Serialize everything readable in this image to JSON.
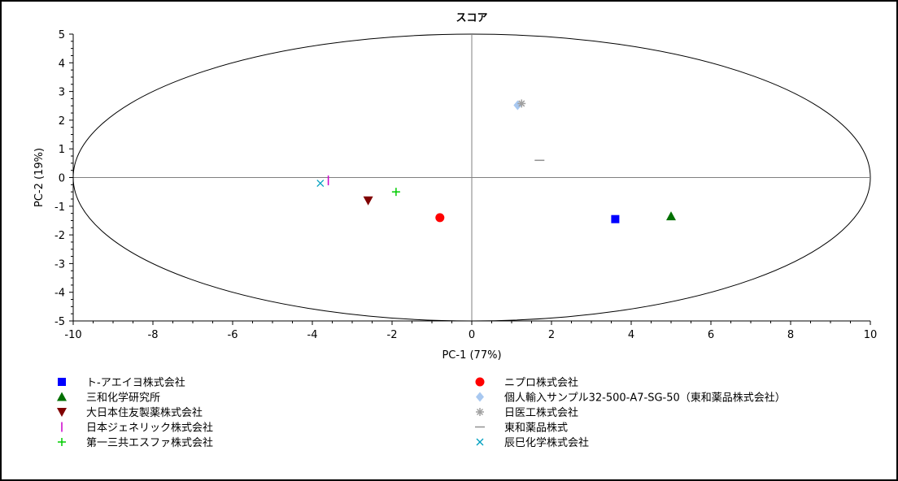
{
  "chart_data": {
    "type": "scatter",
    "title": "スコア",
    "xlabel": "PC-1 (77%)",
    "ylabel": "PC-2 (19%)",
    "xlim": [
      -10,
      10
    ],
    "ylim": [
      -5,
      5
    ],
    "x_ticks": [
      -10,
      -8,
      -6,
      -4,
      -2,
      0,
      2,
      4,
      6,
      8,
      10
    ],
    "y_ticks": [
      -5,
      -4,
      -3,
      -2,
      -1,
      0,
      1,
      2,
      3,
      4,
      5
    ],
    "grid": false,
    "zero_lines": true,
    "confidence_ellipse": {
      "x_radius": 10,
      "y_radius": 5
    },
    "legend_position": "bottom",
    "series": [
      {
        "name": "ト-アエイヨ株式会社",
        "marker": "square",
        "color": "#0000ff",
        "points": [
          [
            3.6,
            -1.45
          ]
        ]
      },
      {
        "name": "ニプロ株式会社",
        "marker": "circle",
        "color": "#ff0000",
        "points": [
          [
            -0.8,
            -1.4
          ]
        ]
      },
      {
        "name": "三和化学研究所",
        "marker": "triangle-up",
        "color": "#007000",
        "points": [
          [
            5.0,
            -1.35
          ]
        ]
      },
      {
        "name": "個人輸入サンプル32-500-A7-SG-50（東和薬品株式会社）",
        "marker": "diamond",
        "color": "#a8c8f0",
        "points": [
          [
            1.15,
            2.52
          ]
        ]
      },
      {
        "name": "大日本住友製薬株式会社",
        "marker": "triangle-down",
        "color": "#800000",
        "points": [
          [
            -2.6,
            -0.8
          ]
        ]
      },
      {
        "name": "日医工株式会社",
        "marker": "star",
        "color": "#a0a0a0",
        "points": [
          [
            1.25,
            2.58
          ]
        ]
      },
      {
        "name": "日本ジェネリック株式会社",
        "marker": "vline",
        "color": "#cc00cc",
        "points": [
          [
            -3.6,
            -0.1
          ]
        ]
      },
      {
        "name": "東和薬品株式",
        "marker": "hline",
        "color": "#909090",
        "points": [
          [
            1.7,
            0.6
          ]
        ]
      },
      {
        "name": "第一三共エスファ株式会社",
        "marker": "plus",
        "color": "#00cc00",
        "points": [
          [
            -1.9,
            -0.5
          ]
        ]
      },
      {
        "name": "辰巳化学株式会社",
        "marker": "x",
        "color": "#00a0c0",
        "points": [
          [
            -3.8,
            -0.2
          ]
        ]
      }
    ]
  }
}
